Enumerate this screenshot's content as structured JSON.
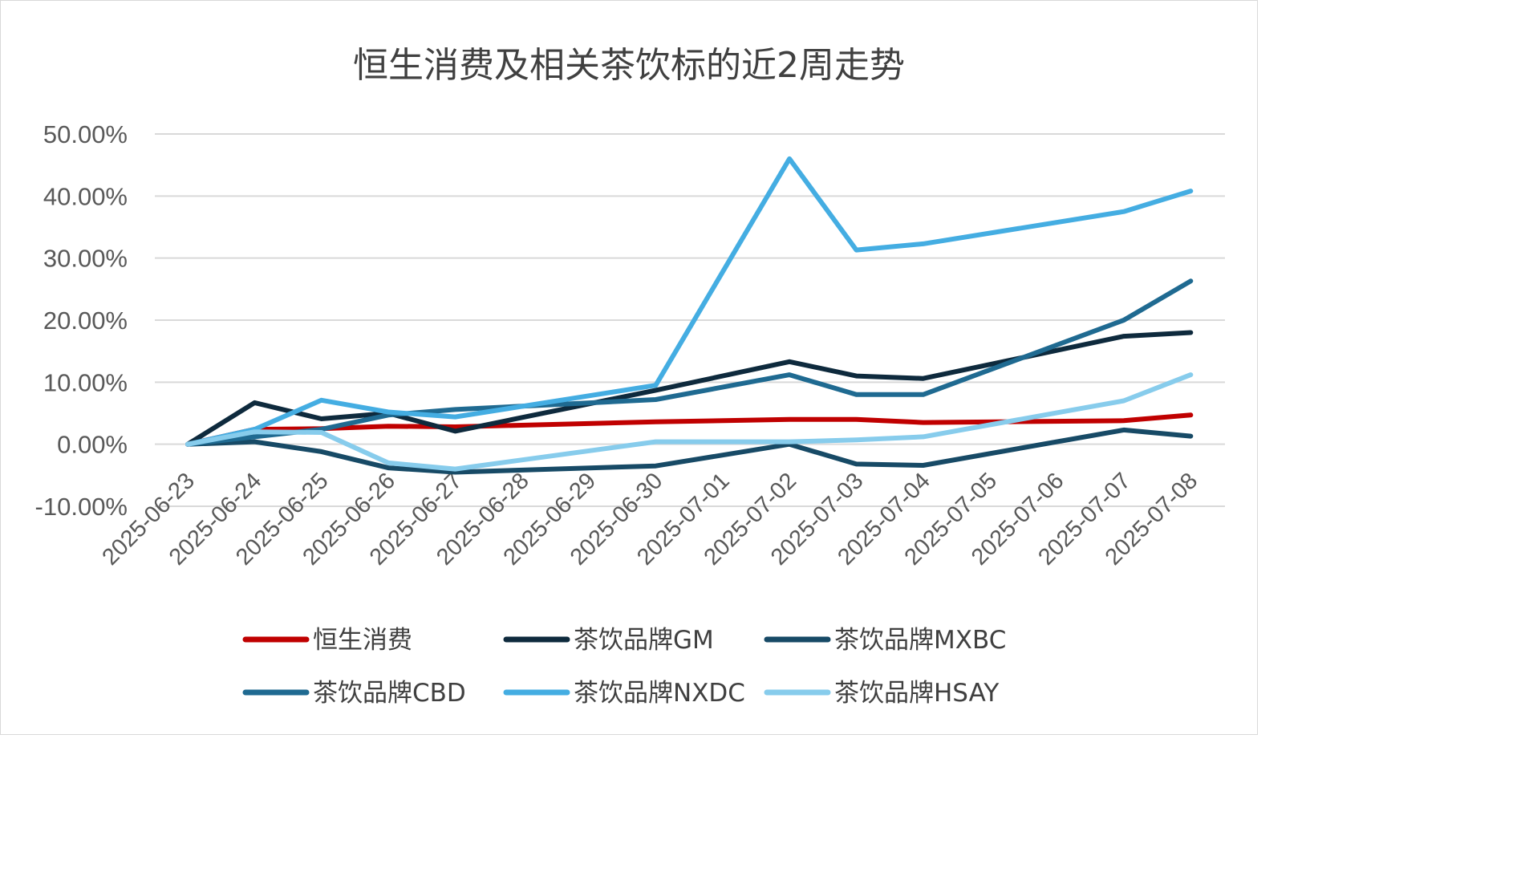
{
  "chart_data": {
    "type": "line",
    "title": "恒生消费及相关茶饮标的近2周走势",
    "xlabel": "",
    "ylabel": "",
    "ylim": [
      -0.1,
      0.5
    ],
    "y_ticks": [
      "-10.00%",
      "0.00%",
      "10.00%",
      "20.00%",
      "30.00%",
      "40.00%",
      "50.00%"
    ],
    "y_tick_values": [
      -0.1,
      0.0,
      0.1,
      0.2,
      0.3,
      0.4,
      0.5
    ],
    "grid": true,
    "legend": "bottom",
    "categories": [
      "2025-06-23",
      "2025-06-24",
      "2025-06-25",
      "2025-06-26",
      "2025-06-27",
      "2025-06-28",
      "2025-06-29",
      "2025-06-30",
      "2025-07-01",
      "2025-07-02",
      "2025-07-03",
      "2025-07-04",
      "2025-07-05",
      "2025-07-06",
      "2025-07-07",
      "2025-07-08"
    ],
    "series": [
      {
        "name": "恒生消费",
        "color": "#c00000",
        "points": [
          [
            "2025-06-23",
            0.0
          ],
          [
            "2025-06-24",
            0.024
          ],
          [
            "2025-06-25",
            0.025
          ],
          [
            "2025-06-26",
            0.029
          ],
          [
            "2025-06-27",
            0.028
          ],
          [
            "2025-06-30",
            0.036
          ],
          [
            "2025-07-02",
            0.04
          ],
          [
            "2025-07-03",
            0.04
          ],
          [
            "2025-07-04",
            0.035
          ],
          [
            "2025-07-07",
            0.038
          ],
          [
            "2025-07-08",
            0.047
          ]
        ]
      },
      {
        "name": "茶饮品牌GM",
        "color": "#0e2a3d",
        "points": [
          [
            "2025-06-23",
            0.0
          ],
          [
            "2025-06-24",
            0.067
          ],
          [
            "2025-06-25",
            0.041
          ],
          [
            "2025-06-26",
            0.05
          ],
          [
            "2025-06-27",
            0.021
          ],
          [
            "2025-06-30",
            0.087
          ],
          [
            "2025-07-02",
            0.133
          ],
          [
            "2025-07-03",
            0.11
          ],
          [
            "2025-07-04",
            0.106
          ],
          [
            "2025-07-07",
            0.174
          ],
          [
            "2025-07-08",
            0.18
          ]
        ]
      },
      {
        "name": "茶饮品牌MXBC",
        "color": "#174a66",
        "points": [
          [
            "2025-06-23",
            0.0
          ],
          [
            "2025-06-24",
            0.004
          ],
          [
            "2025-06-25",
            -0.012
          ],
          [
            "2025-06-26",
            -0.038
          ],
          [
            "2025-06-27",
            -0.045
          ],
          [
            "2025-06-30",
            -0.035
          ],
          [
            "2025-07-02",
            0.0
          ],
          [
            "2025-07-03",
            -0.032
          ],
          [
            "2025-07-04",
            -0.034
          ],
          [
            "2025-07-07",
            0.023
          ],
          [
            "2025-07-08",
            0.013
          ]
        ]
      },
      {
        "name": "茶饮品牌CBD",
        "color": "#1f6a91",
        "points": [
          [
            "2025-06-23",
            0.0
          ],
          [
            "2025-06-24",
            0.012
          ],
          [
            "2025-06-25",
            0.024
          ],
          [
            "2025-06-26",
            0.047
          ],
          [
            "2025-06-27",
            0.056
          ],
          [
            "2025-06-30",
            0.072
          ],
          [
            "2025-07-02",
            0.112
          ],
          [
            "2025-07-03",
            0.08
          ],
          [
            "2025-07-04",
            0.08
          ],
          [
            "2025-07-07",
            0.2
          ],
          [
            "2025-07-08",
            0.263
          ]
        ]
      },
      {
        "name": "茶饮品牌NXDC",
        "color": "#44ade2",
        "points": [
          [
            "2025-06-23",
            0.0
          ],
          [
            "2025-06-24",
            0.024
          ],
          [
            "2025-06-25",
            0.071
          ],
          [
            "2025-06-26",
            0.052
          ],
          [
            "2025-06-27",
            0.044
          ],
          [
            "2025-06-30",
            0.095
          ],
          [
            "2025-07-02",
            0.46
          ],
          [
            "2025-07-03",
            0.313
          ],
          [
            "2025-07-04",
            0.323
          ],
          [
            "2025-07-07",
            0.375
          ],
          [
            "2025-07-08",
            0.408
          ]
        ]
      },
      {
        "name": "茶饮品牌HSAY",
        "color": "#87ccec",
        "points": [
          [
            "2025-06-23",
            0.0
          ],
          [
            "2025-06-24",
            0.02
          ],
          [
            "2025-06-25",
            0.019
          ],
          [
            "2025-06-26",
            -0.03
          ],
          [
            "2025-06-27",
            -0.04
          ],
          [
            "2025-06-30",
            0.004
          ],
          [
            "2025-07-02",
            0.004
          ],
          [
            "2025-07-03",
            0.007
          ],
          [
            "2025-07-04",
            0.012
          ],
          [
            "2025-07-07",
            0.07
          ],
          [
            "2025-07-08",
            0.112
          ]
        ]
      }
    ]
  }
}
